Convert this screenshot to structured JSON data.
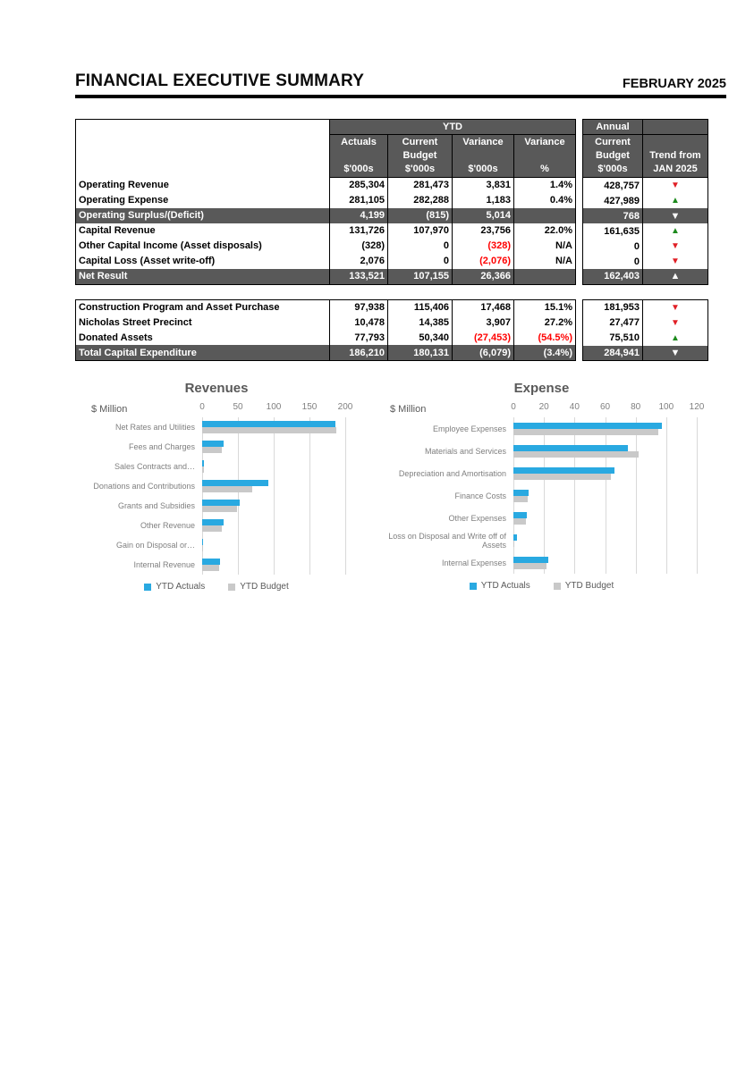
{
  "header": {
    "title": "FINANCIAL EXECUTIVE SUMMARY",
    "period": "FEBRUARY 2025"
  },
  "colors": {
    "dark_fill": "#595959",
    "accent_blue": "#29a9e1",
    "bar_gray": "#c9c9c9",
    "negative_red": "#ff0000",
    "arrow_red": "#e01e25",
    "arrow_green": "#1d8a1d"
  },
  "table_header": {
    "group_ytd": "YTD",
    "group_annual": "Annual",
    "col_actuals": "Actuals\n\n$'000s",
    "col_current_budget": "Current\nBudget\n$'000s",
    "col_variance": "Variance\n\n$'000s",
    "col_variance_pct": "Variance\n\n%",
    "col_annual_budget": "Current\nBudget\n$'000s",
    "col_trend": "Trend from\nJAN 2025"
  },
  "tables": {
    "operating": {
      "rows": [
        {
          "label": "Operating Revenue",
          "actuals": "285,304",
          "budget": "281,473",
          "variance": "3,831",
          "variance_pct": "1.4%",
          "annual_budget": "428,757",
          "trend_dir": "down",
          "trend_tone": "red",
          "summary": false,
          "variance_red": false,
          "variance_pct_red": false
        },
        {
          "label": "Operating Expense",
          "actuals": "281,105",
          "budget": "282,288",
          "variance": "1,183",
          "variance_pct": "0.4%",
          "annual_budget": "427,989",
          "trend_dir": "up",
          "trend_tone": "green",
          "summary": false,
          "variance_red": false,
          "variance_pct_red": false
        },
        {
          "label": "Operating Surplus/(Deficit)",
          "actuals": "4,199",
          "budget": "(815)",
          "variance": "5,014",
          "variance_pct": "",
          "annual_budget": "768",
          "trend_dir": "down",
          "trend_tone": "white",
          "summary": true,
          "variance_red": false,
          "variance_pct_red": false
        },
        {
          "label": "Capital Revenue",
          "actuals": "131,726",
          "budget": "107,970",
          "variance": "23,756",
          "variance_pct": "22.0%",
          "annual_budget": "161,635",
          "trend_dir": "up",
          "trend_tone": "green",
          "summary": false,
          "variance_red": false,
          "variance_pct_red": false
        },
        {
          "label": "Other Capital Income (Asset disposals)",
          "actuals": "(328)",
          "budget": "0",
          "variance": "(328)",
          "variance_pct": "N/A",
          "annual_budget": "0",
          "trend_dir": "down",
          "trend_tone": "red",
          "summary": false,
          "variance_red": true,
          "variance_pct_red": false
        },
        {
          "label": "Capital Loss (Asset write-off)",
          "actuals": "2,076",
          "budget": "0",
          "variance": "(2,076)",
          "variance_pct": "N/A",
          "annual_budget": "0",
          "trend_dir": "down",
          "trend_tone": "red",
          "summary": false,
          "variance_red": true,
          "variance_pct_red": false
        },
        {
          "label": "Net Result",
          "actuals": "133,521",
          "budget": "107,155",
          "variance": "26,366",
          "variance_pct": "",
          "annual_budget": "162,403",
          "trend_dir": "up",
          "trend_tone": "white",
          "summary": true,
          "variance_red": false,
          "variance_pct_red": false
        }
      ]
    },
    "capital": {
      "rows": [
        {
          "label": "Construction Program and Asset Purchase",
          "actuals": "97,938",
          "budget": "115,406",
          "variance": "17,468",
          "variance_pct": "15.1%",
          "annual_budget": "181,953",
          "trend_dir": "down",
          "trend_tone": "red",
          "summary": false,
          "variance_red": false,
          "variance_pct_red": false
        },
        {
          "label": "Nicholas Street Precinct",
          "actuals": "10,478",
          "budget": "14,385",
          "variance": "3,907",
          "variance_pct": "27.2%",
          "annual_budget": "27,477",
          "trend_dir": "down",
          "trend_tone": "red",
          "summary": false,
          "variance_red": false,
          "variance_pct_red": false
        },
        {
          "label": "Donated Assets",
          "actuals": "77,793",
          "budget": "50,340",
          "variance": "(27,453)",
          "variance_pct": "(54.5%)",
          "annual_budget": "75,510",
          "trend_dir": "up",
          "trend_tone": "green",
          "summary": false,
          "variance_red": true,
          "variance_pct_red": true
        },
        {
          "label": "Total Capital Expenditure",
          "actuals": "186,210",
          "budget": "180,131",
          "variance": "(6,079)",
          "variance_pct": "(3.4%)",
          "annual_budget": "284,941",
          "trend_dir": "down",
          "trend_tone": "white",
          "summary": true,
          "variance_red": false,
          "variance_pct_red": false
        }
      ]
    }
  },
  "chart_data": [
    {
      "type": "bar",
      "orientation": "horizontal",
      "title": "Revenues",
      "unit_label": "$ Million",
      "xlim": [
        0,
        200
      ],
      "x_ticks": [
        0,
        50,
        100,
        150,
        200
      ],
      "grid": true,
      "legend_position": "bottom",
      "categories": [
        "Net Rates and Utilities",
        "Fees and Charges",
        "Sales Contracts and…",
        "Donations and Contributions",
        "Grants and Subsidies",
        "Other Revenue",
        "Gain on Disposal or…",
        "Internal Revenue"
      ],
      "series": [
        {
          "name": "YTD Actuals",
          "color": "#29a9e1",
          "values": [
            186,
            30,
            3,
            93,
            52,
            30,
            1,
            25
          ]
        },
        {
          "name": "YTD Budget",
          "color": "#c9c9c9",
          "values": [
            188,
            27,
            2,
            70,
            49,
            27,
            0.5,
            24
          ]
        }
      ]
    },
    {
      "type": "bar",
      "orientation": "horizontal",
      "title": "Expense",
      "unit_label": "$ Million",
      "xlim": [
        0,
        120
      ],
      "x_ticks": [
        0,
        20,
        40,
        60,
        80,
        100,
        120
      ],
      "grid": true,
      "legend_position": "bottom",
      "categories": [
        "Employee Expenses",
        "Materials and Services",
        "Depreciation and Amortisation",
        "Finance Costs",
        "Other Expenses",
        "Loss on Disposal and Write off of Assets",
        "Internal Expenses"
      ],
      "series": [
        {
          "name": "YTD Actuals",
          "color": "#29a9e1",
          "values": [
            97,
            75,
            66,
            10,
            9,
            2.5,
            23
          ]
        },
        {
          "name": "YTD Budget",
          "color": "#c9c9c9",
          "values": [
            95,
            82,
            64,
            9.5,
            8,
            0.5,
            21.5
          ]
        }
      ]
    }
  ]
}
